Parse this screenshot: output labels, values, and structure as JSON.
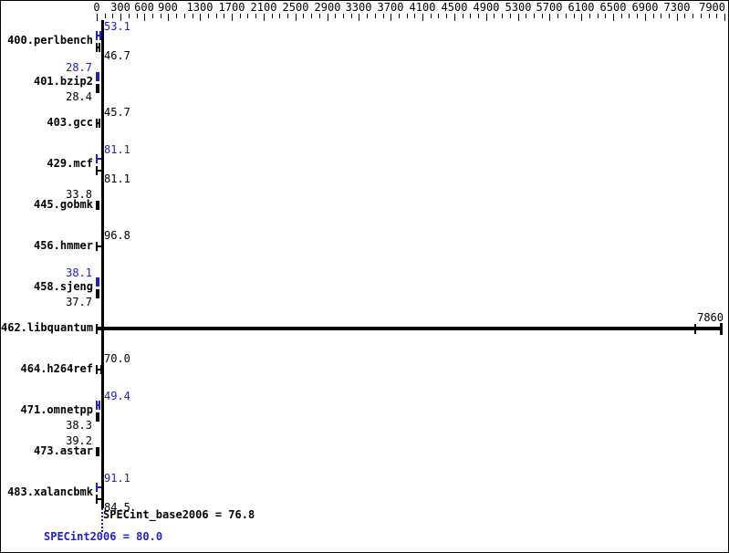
{
  "chart_data": {
    "type": "bar",
    "orientation": "horizontal",
    "title": "",
    "xlabel": "",
    "ylabel": "",
    "xlim": [
      0,
      7900
    ],
    "axis": {
      "min": 0,
      "max": 7900,
      "minor_step": 100,
      "labeled_ticks": [
        0,
        300,
        600,
        900,
        1300,
        1700,
        2100,
        2500,
        2900,
        3300,
        3700,
        4100,
        4500,
        4900,
        5300,
        5700,
        6100,
        6500,
        6900,
        7300,
        7900
      ]
    },
    "categories": [
      "400.perlbench",
      "401.bzip2",
      "403.gcc",
      "429.mcf",
      "445.gobmk",
      "456.hmmer",
      "458.sjeng",
      "462.libquantum",
      "464.h264ref",
      "471.omnetpp",
      "473.astar",
      "483.xalancbmk"
    ],
    "series": [
      {
        "name": "peak",
        "color": "#2222bb",
        "values": [
          53.1,
          28.7,
          null,
          81.1,
          null,
          null,
          38.1,
          null,
          null,
          49.4,
          null,
          91.1
        ]
      },
      {
        "name": "base",
        "color": "#000000",
        "values": [
          46.7,
          28.4,
          45.7,
          81.1,
          33.8,
          96.8,
          37.7,
          7860,
          70.0,
          38.3,
          39.2,
          84.5
        ]
      }
    ],
    "row_layout": [
      {
        "peak_side": "right",
        "base_side": "right"
      },
      {
        "peak_side": "left",
        "base_side": "left"
      },
      {
        "base_side": "right"
      },
      {
        "peak_side": "right",
        "base_side": "right"
      },
      {
        "base_side": "left"
      },
      {
        "base_side": "right"
      },
      {
        "peak_side": "left",
        "base_side": "left"
      },
      {
        "base_side": "end",
        "inner_cap": 7520
      },
      {
        "base_side": "right"
      },
      {
        "peak_side": "right",
        "base_side": "left"
      },
      {
        "base_side": "left"
      },
      {
        "peak_side": "right",
        "base_side": "right"
      }
    ],
    "summary": {
      "base_label": "SPECint_base2006 = 76.8",
      "base_value": 76.8,
      "peak_label": "SPECint2006 = 80.0",
      "peak_value": 80.0
    },
    "colors": {
      "base": "#000000",
      "peak": "#2222bb"
    },
    "legend": "none",
    "grid": false
  }
}
